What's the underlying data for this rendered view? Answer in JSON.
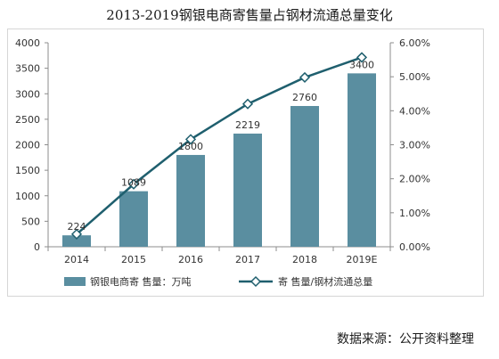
{
  "chart_data": {
    "title": "2013-2019钢银电商寄售量占钢材流通总量变化",
    "type": "bar+line",
    "categories": [
      "2014",
      "2015",
      "2016",
      "2017",
      "2018",
      "2019E"
    ],
    "series": [
      {
        "name": "钢银电商寄 售量：万吨",
        "type": "bar",
        "axis": "left",
        "values": [
          224,
          1089,
          1800,
          2219,
          2760,
          3400
        ],
        "labels": [
          "224",
          "1089",
          "1800",
          "2219",
          "2760",
          "3400"
        ],
        "color": "#5a8ea0"
      },
      {
        "name": "寄 售量/钢材流通总量",
        "type": "line",
        "axis": "right",
        "values": [
          0.0037,
          0.0184,
          0.0316,
          0.042,
          0.0498,
          0.0557
        ],
        "color": "#1f5f6e"
      }
    ],
    "left_axis": {
      "ylim": [
        0,
        4000
      ],
      "ticks": [
        "0",
        "500",
        "1000",
        "1500",
        "2000",
        "2500",
        "3000",
        "3500",
        "4000"
      ]
    },
    "right_axis": {
      "ylim": [
        0,
        0.06
      ],
      "ticks": [
        "0.00%",
        "1.00%",
        "2.00%",
        "3.00%",
        "4.00%",
        "5.00%",
        "6.00%"
      ]
    },
    "grid": false,
    "legend": "bottom"
  },
  "source_text": "数据来源：公开资料整理"
}
